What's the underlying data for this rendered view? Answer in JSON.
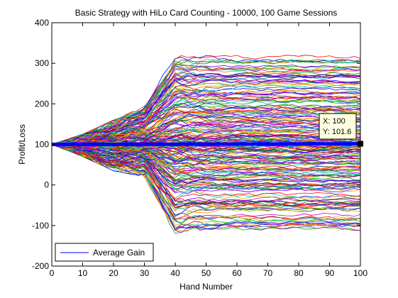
{
  "chart_data": {
    "type": "line",
    "title": "Basic Strategy with HiLo Card Counting - 10000, 100 Game Sessions",
    "xlabel": "Hand Number",
    "ylabel": "Profit/Loss",
    "xlim": [
      0,
      100
    ],
    "ylim": [
      -200,
      400
    ],
    "x_ticks": [
      "0",
      "10",
      "20",
      "30",
      "40",
      "50",
      "60",
      "70",
      "80",
      "90",
      "100"
    ],
    "y_ticks": [
      "-200",
      "-100",
      "0",
      "100",
      "200",
      "300",
      "400"
    ],
    "grid": false,
    "legend": {
      "location": "bottom-left",
      "entries": [
        "Average Gain"
      ]
    },
    "series_colors": [
      "#0000ff",
      "#00aa00",
      "#ff0000",
      "#00bfbf",
      "#bf00bf",
      "#bfbf00",
      "#404040",
      "#ff8000",
      "#8000ff"
    ],
    "average_gain": {
      "name": "Average Gain",
      "color": "#0000ff",
      "x": [
        0,
        10,
        20,
        30,
        40,
        50,
        60,
        70,
        80,
        90,
        100
      ],
      "y": [
        100,
        100.1,
        100.2,
        100.3,
        100.5,
        100.7,
        100.9,
        101.0,
        101.2,
        101.4,
        101.6
      ]
    },
    "envelope": {
      "x": [
        0,
        10,
        20,
        30,
        40,
        45,
        50,
        60,
        70,
        80,
        90,
        100
      ],
      "max": [
        100,
        125,
        160,
        200,
        330,
        330,
        330,
        330,
        330,
        335,
        360,
        362
      ],
      "min": [
        100,
        70,
        35,
        20,
        -130,
        -120,
        -120,
        -115,
        -115,
        -115,
        -115,
        -125
      ]
    },
    "datatip": {
      "x_label": "X: 100",
      "y_label": "Y: 101.6",
      "x": 100,
      "y": 101.6
    }
  }
}
